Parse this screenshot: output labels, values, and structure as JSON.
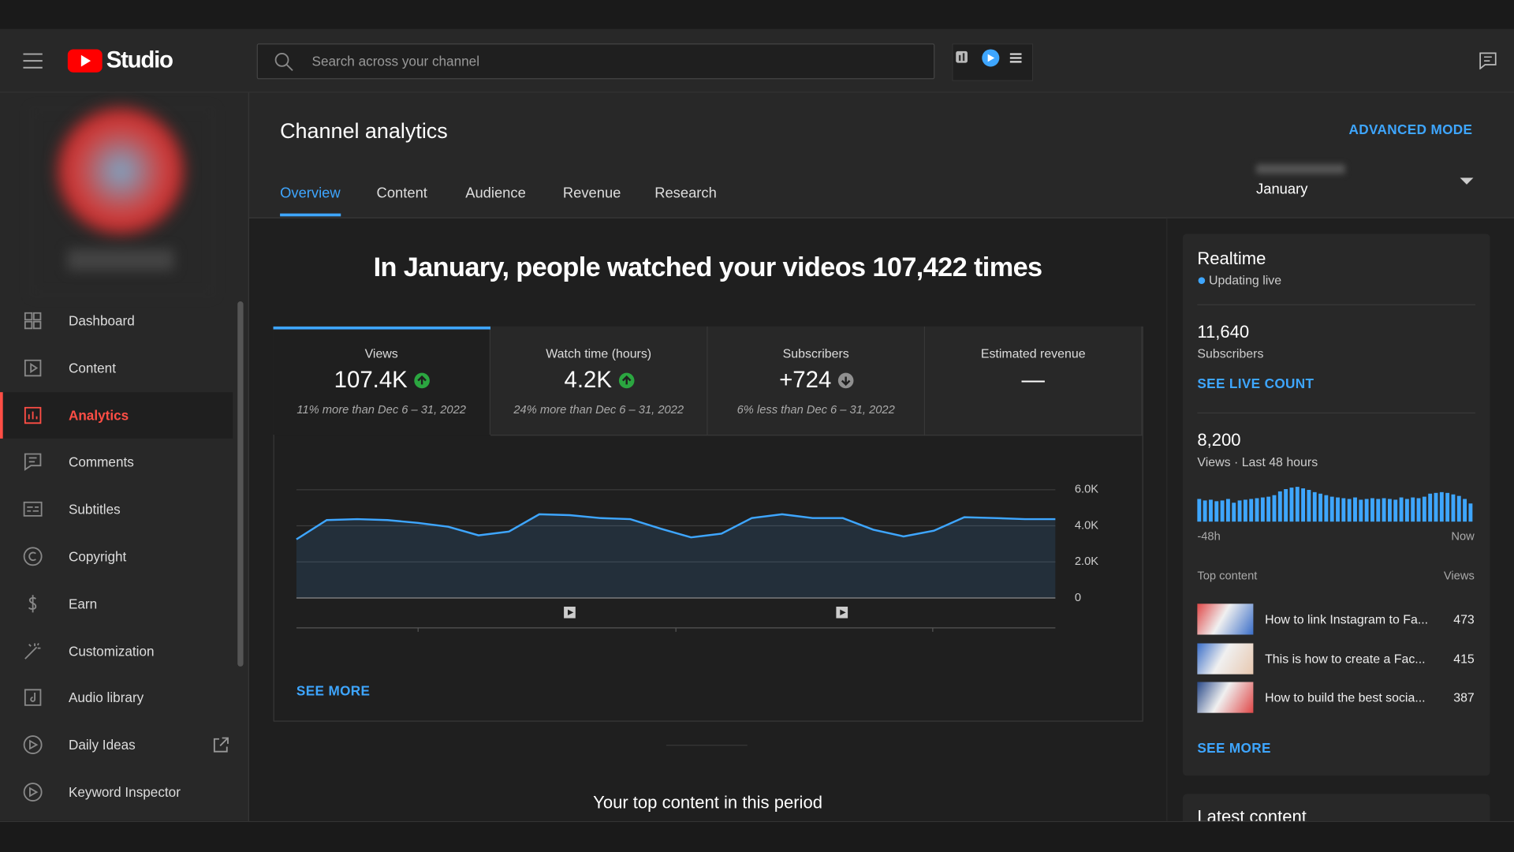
{
  "header": {
    "logo": "Studio",
    "search_placeholder": "Search across your channel"
  },
  "sidebar": {
    "items": [
      "Dashboard",
      "Content",
      "Analytics",
      "Comments",
      "Subtitles",
      "Copyright",
      "Earn",
      "Customization",
      "Audio library",
      "Daily Ideas",
      "Keyword Inspector"
    ],
    "active_index": 2
  },
  "page": {
    "title": "Channel analytics",
    "advanced_mode": "ADVANCED MODE",
    "period": "January"
  },
  "tabs": {
    "items": [
      "Overview",
      "Content",
      "Audience",
      "Revenue",
      "Research"
    ],
    "active_index": 0
  },
  "headline": "In January, people watched your videos 107,422 times",
  "metrics": [
    {
      "label": "Views",
      "value": "107.4K",
      "trend": "up",
      "comparison": "11% more than Dec 6 – 31, 2022"
    },
    {
      "label": "Watch time (hours)",
      "value": "4.2K",
      "trend": "up",
      "comparison": "24% more than Dec 6 – 31, 2022"
    },
    {
      "label": "Subscribers",
      "value": "+724",
      "trend": "down",
      "comparison": "6% less than Dec 6 – 31, 2022"
    },
    {
      "label": "Estimated revenue",
      "value": "—"
    }
  ],
  "chart_data": [
    {
      "type": "area",
      "color": "#3ea6ff",
      "values": [
        3250,
        4320,
        4370,
        4320,
        4160,
        3950,
        3470,
        3680,
        4640,
        4590,
        4430,
        4370,
        3840,
        3360,
        3570,
        4430,
        4640,
        4430,
        4430,
        3790,
        3410,
        3730,
        4480,
        4430,
        4370,
        4370
      ],
      "ylim": [
        0,
        6000
      ],
      "yticks": [
        0,
        {
          "value": 2000,
          "label": "2.0K"
        },
        {
          "value": 4000,
          "label": "4.0K"
        },
        {
          "value": 6000,
          "label": "6.0K"
        }
      ],
      "grid": true
    },
    {
      "type": "bar",
      "color": "#3ea6ff",
      "values": [
        150,
        140,
        145,
        135,
        140,
        150,
        125,
        140,
        145,
        150,
        155,
        160,
        165,
        175,
        200,
        215,
        225,
        230,
        220,
        210,
        195,
        185,
        175,
        165,
        160,
        155,
        150,
        160,
        145,
        150,
        155,
        150,
        155,
        150,
        145,
        160,
        150,
        160,
        155,
        165,
        185,
        190,
        195,
        190,
        180,
        170,
        150,
        120
      ],
      "x_labels": [
        "-48h",
        "Now"
      ]
    }
  ],
  "see_more": "SEE MORE",
  "top_content_title": "Your top content in this period",
  "realtime": {
    "title": "Realtime",
    "status": "Updating live",
    "subscribers": "11,640",
    "subscribers_label": "Subscribers",
    "live_count": "SEE LIVE COUNT",
    "views": "8,200",
    "views_label": "Views · Last 48 hours",
    "top_content_label": "Top content",
    "views_column": "Views",
    "items": [
      {
        "title": "How to link Instagram to Fa...",
        "views": 473
      },
      {
        "title": "This is how to create a Fac...",
        "views": 415
      },
      {
        "title": "How to build the best socia...",
        "views": 387
      }
    ],
    "see_more": "SEE MORE"
  },
  "latest_content": "Latest content"
}
